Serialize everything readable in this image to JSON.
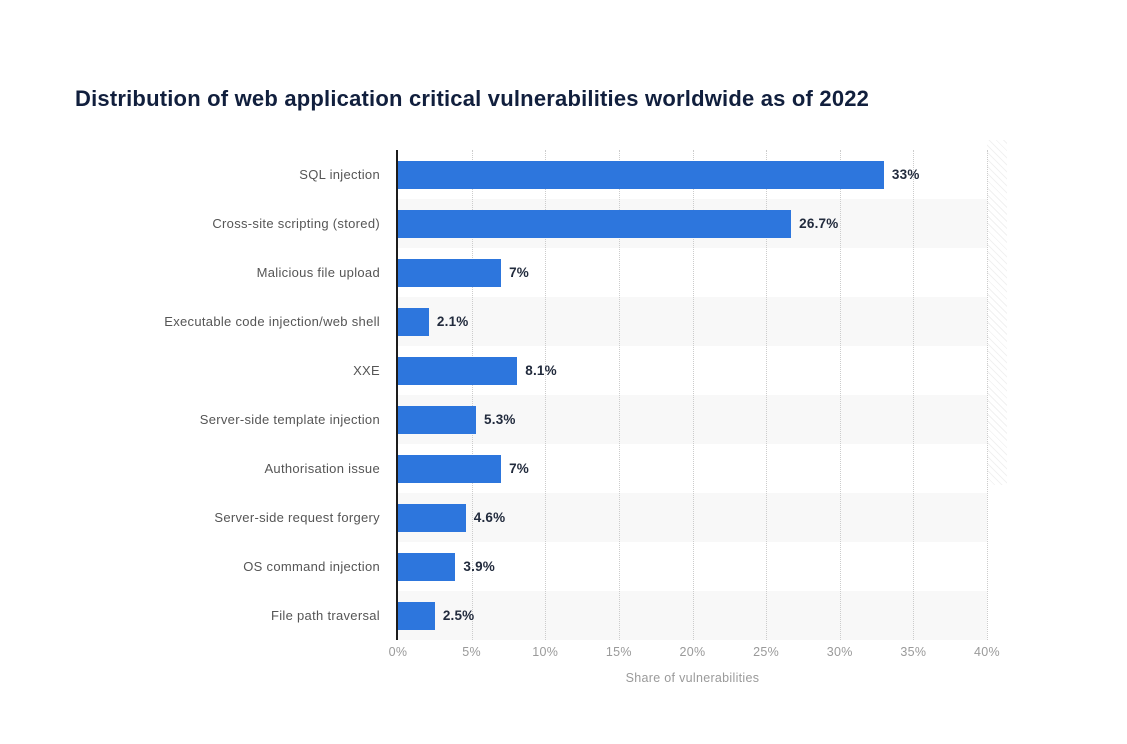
{
  "title": "Distribution of web application critical vulnerabilities worldwide as of 2022",
  "chart_data": {
    "type": "bar",
    "orientation": "horizontal",
    "title": "Distribution of web application critical vulnerabilities worldwide as of 2022",
    "categories": [
      "SQL injection",
      "Cross-site scripting (stored)",
      "Malicious file upload",
      "Executable code injection/web shell",
      "XXE",
      "Server-side template injection",
      "Authorisation issue",
      "Server-side request forgery",
      "OS command injection",
      "File path traversal"
    ],
    "values": [
      33,
      26.7,
      7,
      2.1,
      8.1,
      5.3,
      7,
      4.6,
      3.9,
      2.5
    ],
    "value_labels": [
      "33%",
      "26.7%",
      "7%",
      "2.1%",
      "8.1%",
      "5.3%",
      "7%",
      "4.6%",
      "3.9%",
      "2.5%"
    ],
    "xlabel": "Share of vulnerabilities",
    "ylabel": "",
    "xlim": [
      0,
      40
    ],
    "xticks": [
      "0%",
      "5%",
      "10%",
      "15%",
      "20%",
      "25%",
      "30%",
      "35%",
      "40%"
    ],
    "xtick_values": [
      0,
      5,
      10,
      15,
      20,
      25,
      30,
      35,
      40
    ],
    "grid": "vertical-dotted",
    "legend": "none"
  },
  "colors": {
    "bar": "#2d76dd",
    "title": "#111f3d",
    "category_label": "#555555",
    "value_label": "#222b3d",
    "tick_label": "#9a9a9a",
    "gridline": "#cccccc",
    "axis_line": "#1c1c1c",
    "row_band_alt": "#f8f8f8",
    "row_band": "#ffffff",
    "background": "#ffffff"
  }
}
